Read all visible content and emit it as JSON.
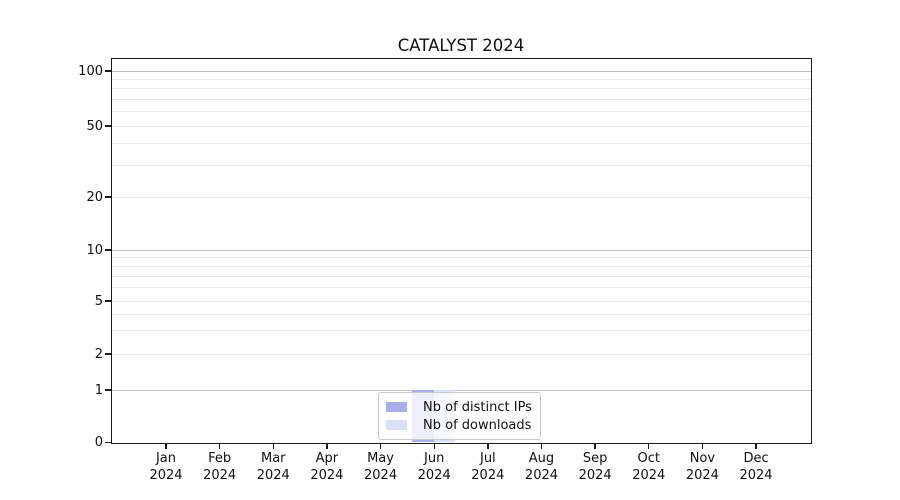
{
  "figure": {
    "title": "CATALYST 2024"
  },
  "chart_data": {
    "type": "bar",
    "title": "CATALYST 2024",
    "xlabel": "",
    "ylabel": "",
    "categories": [
      "Jan 2024",
      "Feb 2024",
      "Mar 2024",
      "Apr 2024",
      "May 2024",
      "Jun 2024",
      "Jul 2024",
      "Aug 2024",
      "Sep 2024",
      "Oct 2024",
      "Nov 2024",
      "Dec 2024"
    ],
    "series": [
      {
        "name": "Nb of distinct IPs",
        "color": "#a8aee9",
        "values": [
          0,
          0,
          0,
          0,
          0,
          1,
          0,
          0,
          0,
          0,
          0,
          0
        ]
      },
      {
        "name": "Nb of downloads",
        "color": "#dcdff8",
        "values": [
          0,
          0,
          0,
          0,
          0,
          1,
          0,
          0,
          0,
          0,
          0,
          0
        ]
      }
    ],
    "y_ticks": [
      {
        "label": "0",
        "value": 0
      },
      {
        "label": "1",
        "value": 1
      },
      {
        "label": "2",
        "value": 2
      },
      {
        "label": "5",
        "value": 5
      },
      {
        "label": "10",
        "value": 10
      },
      {
        "label": "20",
        "value": 20
      },
      {
        "label": "50",
        "value": 50
      },
      {
        "label": "100",
        "value": 100
      }
    ],
    "yscale": "symlog",
    "ylim": [
      0,
      117
    ],
    "grid": "both",
    "legend_position": "lower center inside axes",
    "colors": {
      "grid_major": "#bfbfbf",
      "grid_minor": "#e9e9e9",
      "spine": "#1a1a1a",
      "background": "#ffffff"
    }
  }
}
